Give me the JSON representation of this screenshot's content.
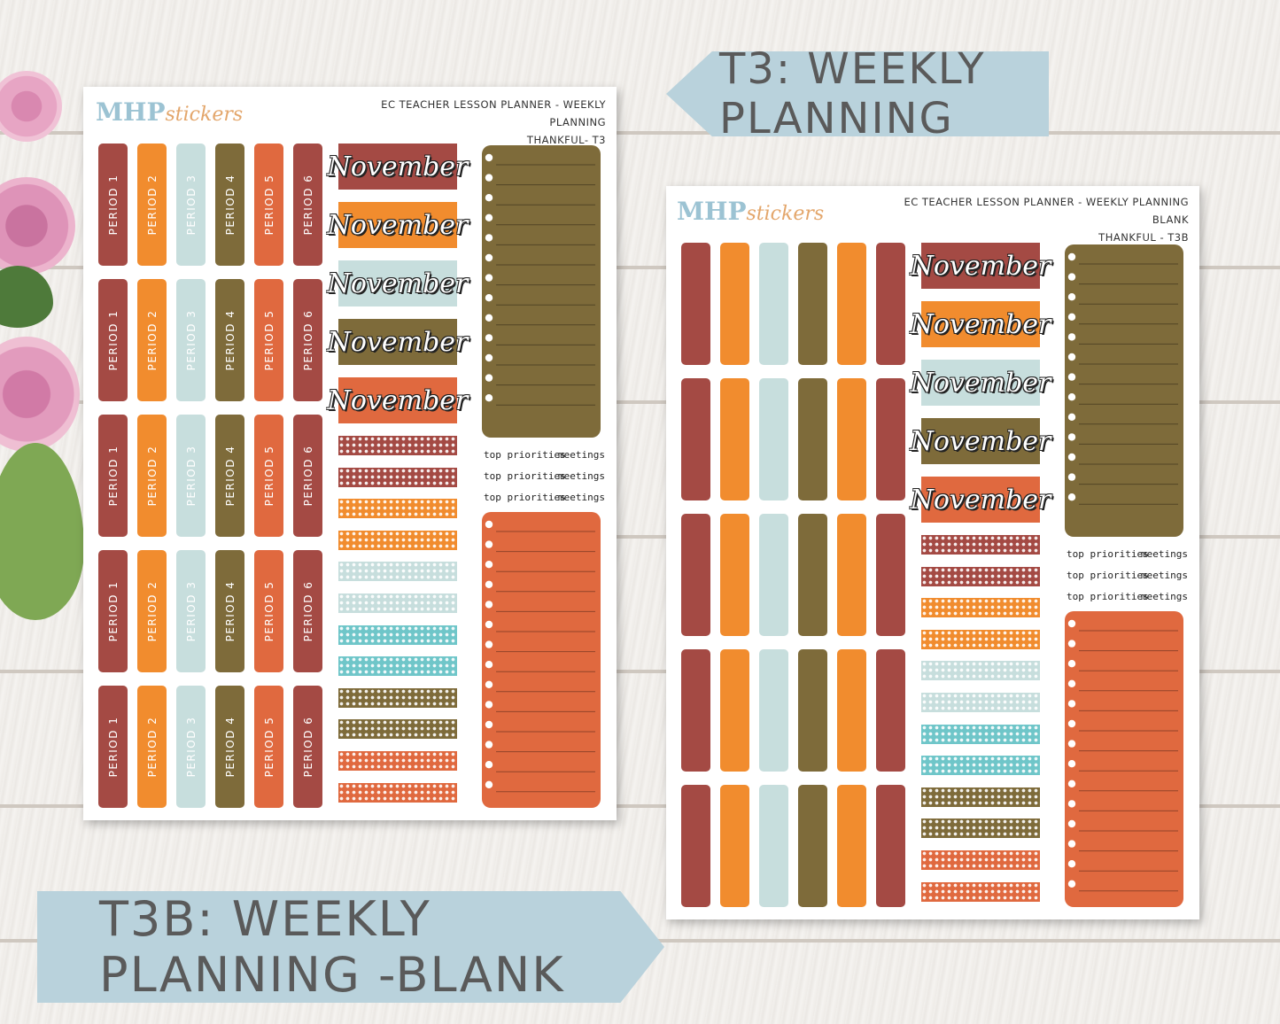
{
  "banners": {
    "t3": "T3: WEEKLY PLANNING",
    "t3b": "T3B: WEEKLY PLANNING -BLANK"
  },
  "sheet1": {
    "logo_main": "MHP",
    "logo_script": "stickers",
    "header_line1": "EC TEACHER LESSON PLANNER - WEEKLY PLANNING",
    "header_line2": "THANKFUL- T3",
    "periods": [
      "PERIOD 1",
      "PERIOD 2",
      "PERIOD 3",
      "PERIOD 4",
      "PERIOD 5",
      "PERIOD 6"
    ],
    "month": "November",
    "label_left": "top priorities",
    "label_right": "meetings"
  },
  "sheet2": {
    "logo_main": "MHP",
    "logo_script": "stickers",
    "header_line1": "EC TEACHER LESSON PLANNER - WEEKLY PLANNING BLANK",
    "header_line2": "THANKFUL - T3B",
    "month": "November",
    "label_left": "top priorities",
    "label_right": "meetings"
  },
  "colors": {
    "maroon": "#a44a44",
    "orange": "#f18c2e",
    "sky": "#c7dedd",
    "olive": "#7e6b3a",
    "rust": "#e0693f",
    "teal": "#6fc6c9",
    "banner": "#b9d2dc"
  }
}
